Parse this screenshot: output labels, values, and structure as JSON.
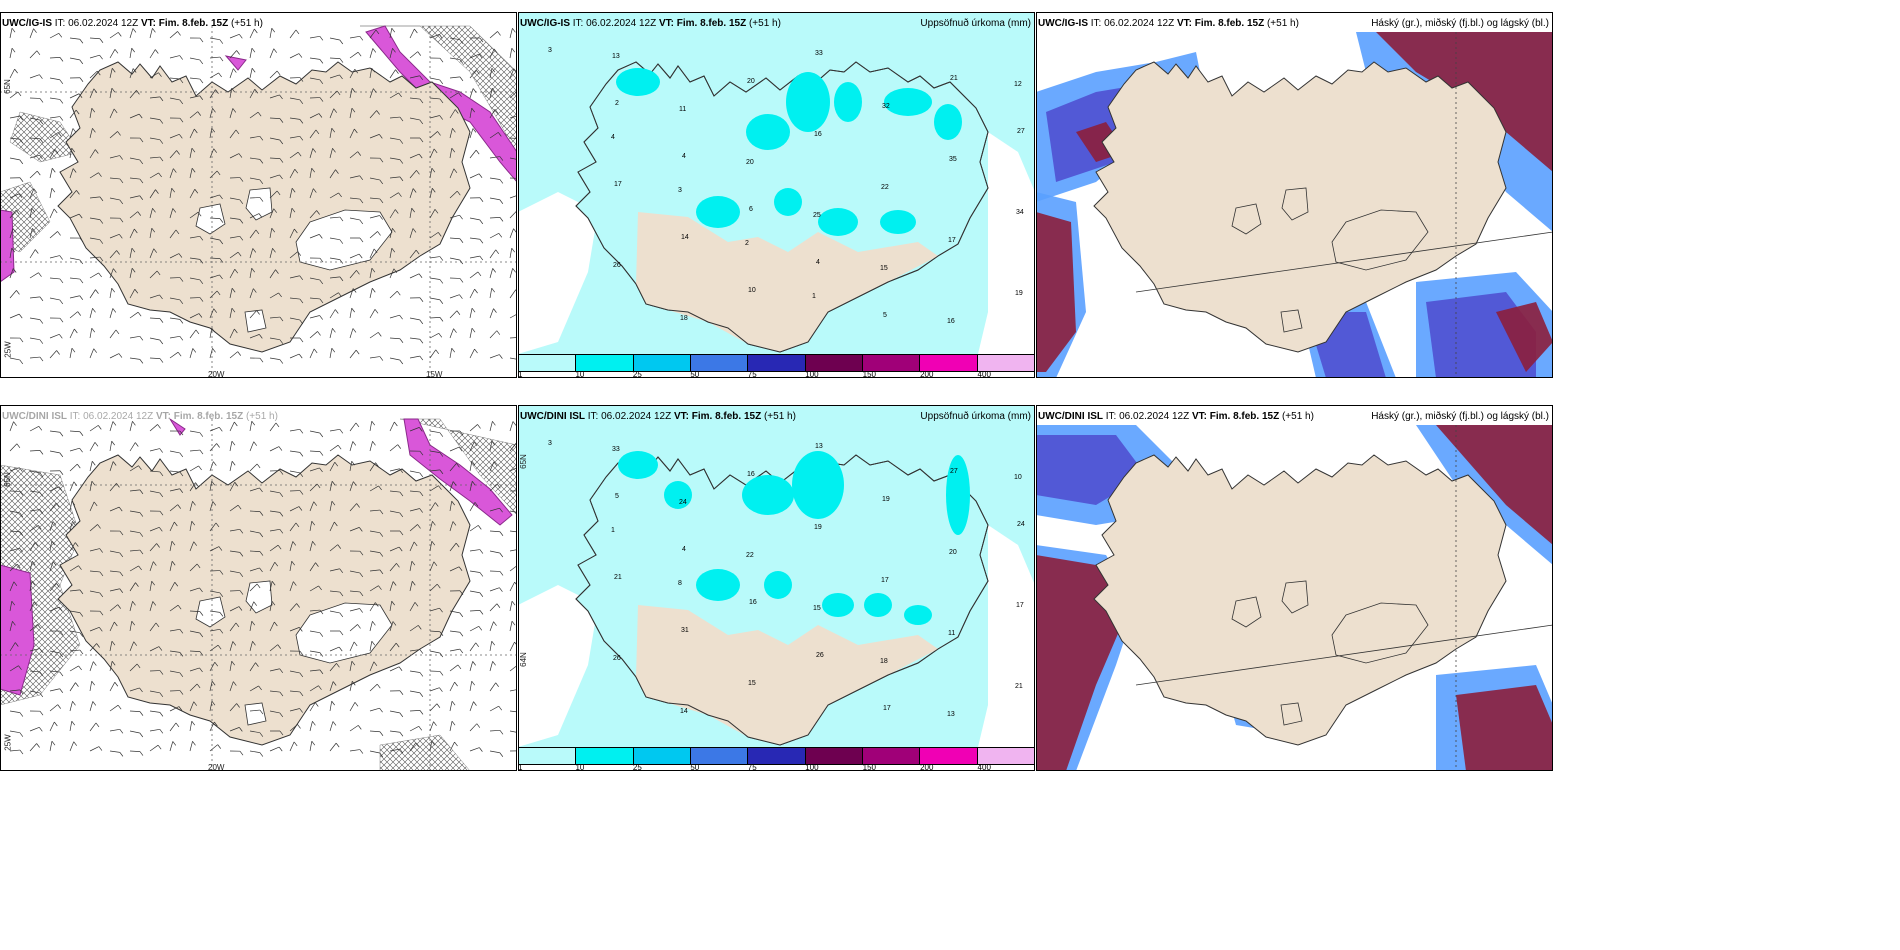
{
  "rows": [
    {
      "wind": {
        "title_model": "UWC/IG-IS",
        "title_rest": " IT: 06.02.2024 12Z ",
        "title_vt": "VT: Fim. 8.feb. 15Z",
        "title_lead": " (+51 h)"
      },
      "precip": {
        "title_model": "UWC/IG-IS",
        "title_rest": " IT: 06.02.2024 12Z ",
        "title_vt": "VT: Fim. 8.feb. 15Z",
        "title_lead": " (+51 h)",
        "right_title": "Uppsöfnuð úrkoma (mm)"
      },
      "cloud": {
        "title_model": "UWC/IG-IS",
        "title_rest": " IT: 06.02.2024 12Z ",
        "title_vt": "VT: Fim. 8.feb. 15Z",
        "title_lead": " (+51 h)",
        "right_title": "Háský (gr.), miðský (fj.bl.) og lágský (bl.)"
      }
    },
    {
      "wind": {
        "title_model": "UWC/DINI ISL",
        "title_rest": " IT: 06.02.2024 12Z ",
        "title_vt": "VT: Fim. 8.feb. 15Z",
        "title_lead": " (+51 h)"
      },
      "precip": {
        "title_model": "UWC/DINI ISL",
        "title_rest": " IT: 06.02.2024 12Z ",
        "title_vt": "VT: Fim. 8.feb. 15Z",
        "title_lead": " (+51 h)",
        "right_title": "Uppsöfnuð úrkoma (mm)"
      },
      "cloud": {
        "title_model": "UWC/DINI ISL",
        "title_rest": " IT: 06.02.2024 12Z ",
        "title_vt": "VT: Fim. 8.feb. 15Z",
        "title_lead": " (+51 h)",
        "right_title": "Háský (gr.), miðský (fj.bl.) og lágský (bl.)"
      }
    }
  ],
  "axis_labels": {
    "lon_20w": "20W",
    "lon_15w": "15W",
    "lat_65n": "65N",
    "lat_64n": "64N",
    "lon_25w": "25W"
  },
  "colorbar": {
    "colors": [
      "#b9fafa",
      "#00f0f0",
      "#00c8f0",
      "#3c78e6",
      "#2828b4",
      "#6e0050",
      "#a00078",
      "#f000b4",
      "#f0b4f0"
    ],
    "ticks": [
      "1",
      "10",
      "25",
      "50",
      "75",
      "100",
      "150",
      "200",
      "400"
    ]
  },
  "colors": {
    "land": "#ede0cf",
    "sea_precip": "#b9fafa",
    "precip_mid": "#00f0f0",
    "cloud_high": "#8c1e3c",
    "cloud_mid": "#5050d2",
    "cloud_low": "#5aa0ff",
    "wind_high": "#e060e0"
  },
  "precip_values_row1": [
    "3",
    "2",
    "4",
    "6",
    "4",
    "5",
    "21",
    "27",
    "17",
    "14",
    "10",
    "33",
    "32",
    "35",
    "34",
    "26",
    "18",
    "20",
    "16",
    "22",
    "17",
    "19",
    "13",
    "11",
    "20",
    "25",
    "15",
    "16",
    "12",
    "4",
    "3",
    "2",
    "1"
  ],
  "precip_values_row2": [
    "3",
    "5",
    "4",
    "16",
    "26",
    "17",
    "27",
    "24",
    "21",
    "31",
    "15",
    "13",
    "19",
    "20",
    "17",
    "26",
    "14",
    "16",
    "19",
    "17",
    "11",
    "21",
    "33",
    "24",
    "22",
    "15",
    "18",
    "13",
    "10",
    "1",
    "8"
  ]
}
